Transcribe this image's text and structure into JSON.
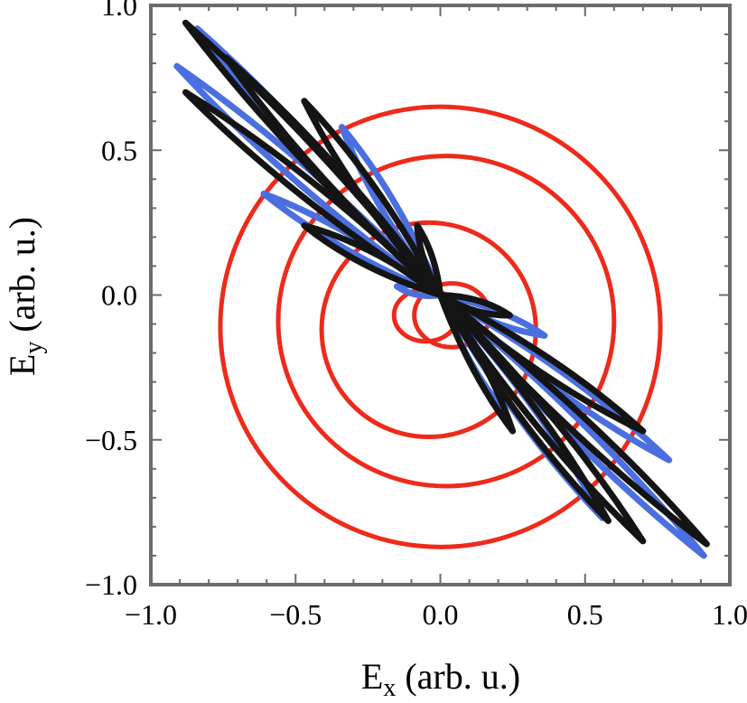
{
  "chart_data": {
    "type": "line",
    "title": "",
    "xlabel": {
      "base": "E",
      "sub": "x",
      "rest": " (arb. u.)"
    },
    "ylabel": {
      "base": "E",
      "sub": "y",
      "rest": " (arb. u.)"
    },
    "xlim": [
      -1.0,
      1.0
    ],
    "ylim": [
      -1.0,
      1.0
    ],
    "xticks": [
      -1.0,
      -0.5,
      0.0,
      0.5,
      1.0
    ],
    "yticks": [
      -1.0,
      -0.5,
      0.0,
      0.5,
      1.0
    ],
    "xtick_labels": [
      "−1.0",
      "−0.5",
      "0.0",
      "0.5",
      "1.0"
    ],
    "ytick_labels": [
      "−1.0",
      "−0.5",
      "0.0",
      "0.5",
      "1.0"
    ],
    "grid": false,
    "legend": "none",
    "colors": {
      "red": "#ee2a1b",
      "blue": "#4a6fe0",
      "black": "#141414",
      "frame": "#6b6b6b"
    },
    "series": [
      {
        "color": "red",
        "shape": "ellipse",
        "cx": -0.05,
        "cy": -0.07,
        "rx": 0.11,
        "ry": 0.09,
        "rot": 0
      },
      {
        "color": "red",
        "shape": "ellipse",
        "cx": 0.04,
        "cy": -0.07,
        "rx": 0.13,
        "ry": 0.11,
        "rot": 0
      },
      {
        "color": "red",
        "shape": "ellipse",
        "cx": -0.04,
        "cy": -0.12,
        "rx": 0.37,
        "ry": 0.37,
        "rot": 0
      },
      {
        "color": "red",
        "shape": "ellipse",
        "cx": 0.02,
        "cy": -0.09,
        "rx": 0.58,
        "ry": 0.57,
        "rot": 0
      },
      {
        "color": "red",
        "shape": "ellipse",
        "cx": 0.0,
        "cy": -0.11,
        "rx": 0.76,
        "ry": 0.76,
        "rot": 0
      },
      {
        "color": "blue",
        "shape": "petal",
        "tip": [
          -0.91,
          0.79
        ],
        "w": 0.03
      },
      {
        "color": "blue",
        "shape": "petal",
        "tip": [
          -0.84,
          0.92
        ],
        "w": 0.03
      },
      {
        "color": "blue",
        "shape": "petal",
        "tip": [
          -0.61,
          0.35
        ],
        "w": 0.025
      },
      {
        "color": "blue",
        "shape": "petal",
        "tip": [
          -0.34,
          0.58
        ],
        "w": 0.025
      },
      {
        "color": "blue",
        "shape": "petal",
        "tip": [
          -0.15,
          0.03
        ],
        "w": 0.015
      },
      {
        "color": "blue",
        "shape": "petal",
        "tip": [
          0.36,
          -0.14
        ],
        "w": 0.02
      },
      {
        "color": "blue",
        "shape": "petal",
        "tip": [
          0.91,
          -0.9
        ],
        "w": 0.03
      },
      {
        "color": "blue",
        "shape": "petal",
        "tip": [
          0.79,
          -0.57
        ],
        "w": 0.03
      },
      {
        "color": "blue",
        "shape": "petal",
        "tip": [
          0.56,
          -0.77
        ],
        "w": 0.03
      },
      {
        "color": "blue",
        "shape": "petal",
        "tip": [
          0.22,
          -0.4
        ],
        "w": 0.02
      },
      {
        "color": "black",
        "shape": "petal",
        "tip": [
          -0.88,
          0.94
        ],
        "w": 0.03
      },
      {
        "color": "black",
        "shape": "petal",
        "tip": [
          -0.88,
          0.7
        ],
        "w": 0.03
      },
      {
        "color": "black",
        "shape": "petal",
        "tip": [
          -0.74,
          0.82
        ],
        "w": 0.03
      },
      {
        "color": "black",
        "shape": "petal",
        "tip": [
          -0.47,
          0.67
        ],
        "w": 0.028
      },
      {
        "color": "black",
        "shape": "petal",
        "tip": [
          -0.47,
          0.24
        ],
        "w": 0.025
      },
      {
        "color": "black",
        "shape": "petal",
        "tip": [
          -0.08,
          0.24
        ],
        "w": 0.015
      },
      {
        "color": "black",
        "shape": "petal",
        "tip": [
          0.24,
          -0.07
        ],
        "w": 0.018
      },
      {
        "color": "black",
        "shape": "petal",
        "tip": [
          0.25,
          -0.47
        ],
        "w": 0.02
      },
      {
        "color": "black",
        "shape": "petal",
        "tip": [
          0.7,
          -0.47
        ],
        "w": 0.028
      },
      {
        "color": "black",
        "shape": "petal",
        "tip": [
          0.7,
          -0.85
        ],
        "w": 0.03
      },
      {
        "color": "black",
        "shape": "petal",
        "tip": [
          0.92,
          -0.86
        ],
        "w": 0.03
      },
      {
        "color": "black",
        "shape": "petal",
        "tip": [
          0.58,
          -0.78
        ],
        "w": 0.03
      }
    ]
  }
}
